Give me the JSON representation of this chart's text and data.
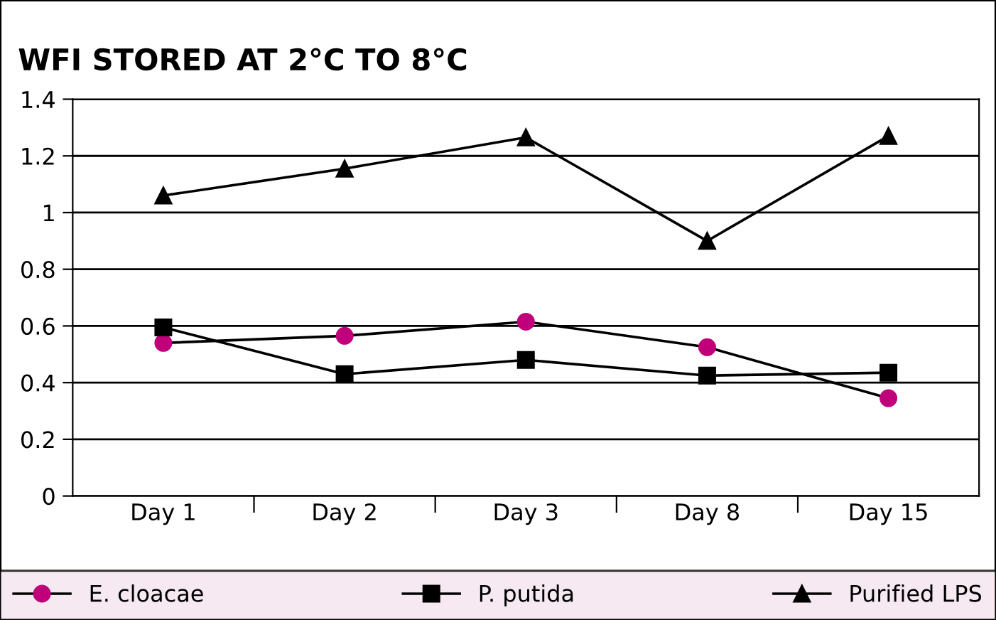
{
  "chart_data": {
    "type": "line",
    "title": "WFI STORED AT 2°C TO 8°C",
    "categories": [
      "Day 1",
      "Day 2",
      "Day 3",
      "Day 8",
      "Day 15"
    ],
    "series": [
      {
        "name": "E. cloacae",
        "color": "#c0007a",
        "marker": "circle",
        "values": [
          0.54,
          0.565,
          0.615,
          0.525,
          0.345
        ]
      },
      {
        "name": "P. putida",
        "color": "#000000",
        "marker": "square",
        "values": [
          0.595,
          0.43,
          0.48,
          0.425,
          0.435
        ]
      },
      {
        "name": "Purified LPS",
        "color": "#000000",
        "marker": "triangle",
        "values": [
          1.06,
          1.155,
          1.265,
          0.9,
          1.27
        ]
      }
    ],
    "ylim": [
      0,
      1.4
    ],
    "yticks": [
      0,
      0.2,
      0.4,
      0.6,
      0.8,
      1,
      1.2,
      1.4
    ],
    "grid": "y",
    "legend": "bottom",
    "line_style": "solid"
  }
}
